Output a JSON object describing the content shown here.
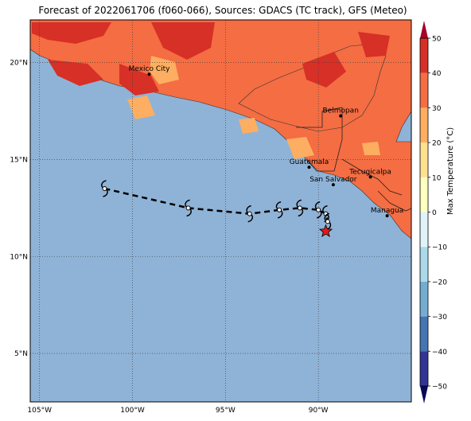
{
  "title": "Forecast of 2022061706 (f060-066), Sources: GDACS (TC track), GFS (Meteo)",
  "map": {
    "lon_range": [
      -105.5,
      -85.0
    ],
    "lat_range": [
      2.5,
      22.2
    ],
    "x_ticks": [
      {
        "lon": -105,
        "label": "105°W"
      },
      {
        "lon": -100,
        "label": "100°W"
      },
      {
        "lon": -95,
        "label": "95°W"
      },
      {
        "lon": -90,
        "label": "90°W"
      }
    ],
    "y_ticks": [
      {
        "lat": 20,
        "label": "20°N"
      },
      {
        "lat": 15,
        "label": "15°N"
      },
      {
        "lat": 10,
        "label": "10°N"
      },
      {
        "lat": 5,
        "label": "5°N"
      }
    ],
    "ocean_color": "#8fb3d7",
    "land_color": "#f46d43",
    "cities": [
      {
        "name": "Mexico City",
        "lon": -99.1,
        "lat": 19.4
      },
      {
        "name": "Belmopan",
        "lon": -88.8,
        "lat": 17.25
      },
      {
        "name": "Guatemala",
        "lon": -90.5,
        "lat": 14.6
      },
      {
        "name": "Tecugicalpa",
        "lon": -87.2,
        "lat": 14.1
      },
      {
        "name": "San Salvador",
        "lon": -89.2,
        "lat": 13.7
      },
      {
        "name": "Managua",
        "lon": -86.3,
        "lat": 12.1
      }
    ],
    "track": [
      {
        "lon": -101.5,
        "lat": 13.5
      },
      {
        "lon": -97.0,
        "lat": 12.5
      },
      {
        "lon": -93.7,
        "lat": 12.2
      },
      {
        "lon": -92.1,
        "lat": 12.4
      },
      {
        "lon": -91.0,
        "lat": 12.5
      },
      {
        "lon": -90.0,
        "lat": 12.4
      },
      {
        "lon": -89.6,
        "lat": 12.2
      },
      {
        "lon": -89.5,
        "lat": 11.8
      }
    ],
    "current_position": {
      "lon": -89.6,
      "lat": 11.3
    }
  },
  "colorbar": {
    "label": "Max Temperature (°C)",
    "min": -50,
    "max": 50,
    "ticks": [
      "50",
      "40",
      "30",
      "20",
      "10",
      "0",
      "−10",
      "−20",
      "−30",
      "−40",
      "−50"
    ],
    "colors": [
      "#313695",
      "#4575b4",
      "#74add1",
      "#abd9e9",
      "#e0f3f8",
      "#ffffbf",
      "#fee090",
      "#fdae61",
      "#f46d43",
      "#d73027"
    ],
    "over_color": "#a50026",
    "under_color": "#0a0a5a"
  }
}
